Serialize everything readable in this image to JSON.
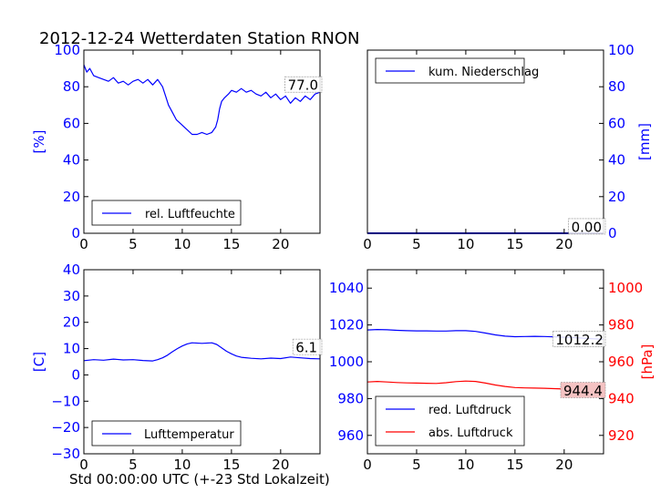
{
  "figure": {
    "title": "2012-12-24 Wetterdaten Station RNON",
    "xlabel": "Std 00:00:00 UTC (+-23 Std Lokalzeit)"
  },
  "colors": {
    "blue": "#0000ff",
    "red": "#ff0000",
    "label_box": "#f4c2c2"
  },
  "chart_data": [
    {
      "type": "line",
      "panel": "top-left",
      "ylabel": "[%]",
      "xlim": [
        0,
        24
      ],
      "ylim": [
        0,
        100
      ],
      "xticks": [
        0,
        5,
        10,
        15,
        20
      ],
      "yticks": [
        0,
        20,
        40,
        60,
        80,
        100
      ],
      "legend": "bottom-left",
      "end_label": "77.0",
      "series": [
        {
          "name": "rel. Luftfeuchte",
          "color": "#0000ff",
          "x": [
            0,
            0.3,
            0.6,
            1,
            1.5,
            2,
            2.5,
            3,
            3.5,
            4,
            4.5,
            5,
            5.5,
            6,
            6.5,
            7,
            7.5,
            8,
            8.3,
            8.6,
            9,
            9.4,
            9.8,
            10.2,
            10.6,
            11,
            11.5,
            12,
            12.5,
            13,
            13.4,
            13.6,
            13.8,
            14,
            14.3,
            14.7,
            15,
            15.5,
            16,
            16.5,
            17,
            17.5,
            18,
            18.5,
            19,
            19.5,
            20,
            20.5,
            21,
            21.5,
            22,
            22.5,
            23,
            23.5,
            24
          ],
          "y": [
            92,
            88,
            90,
            86,
            85,
            84,
            83,
            85,
            82,
            83,
            81,
            83,
            84,
            82,
            84,
            81,
            84,
            80,
            75,
            70,
            66,
            62,
            60,
            58,
            56,
            54,
            54,
            55,
            54,
            55,
            58,
            62,
            68,
            72,
            74,
            76,
            78,
            77,
            79,
            77,
            78,
            76,
            75,
            77,
            74,
            76,
            73,
            75,
            71,
            74,
            72,
            75,
            73,
            76,
            77
          ]
        }
      ]
    },
    {
      "type": "line",
      "panel": "top-right",
      "ylabel": "[mm]",
      "xlim": [
        0,
        24
      ],
      "ylim": [
        0,
        100
      ],
      "xticks": [
        0,
        5,
        10,
        15,
        20
      ],
      "yticks": [
        0,
        20,
        40,
        60,
        80,
        100
      ],
      "legend": "top-left",
      "end_label": "0.00",
      "series": [
        {
          "name": "kum. Niederschlag",
          "color": "#0000ff",
          "x": [
            0,
            24
          ],
          "y": [
            0,
            0
          ]
        }
      ]
    },
    {
      "type": "line",
      "panel": "bottom-left",
      "ylabel": "[C]",
      "xlim": [
        0,
        24
      ],
      "ylim": [
        -30,
        40
      ],
      "xticks": [
        0,
        5,
        10,
        15,
        20
      ],
      "yticks": [
        -30,
        -20,
        -10,
        0,
        10,
        20,
        30,
        40
      ],
      "legend": "bottom-left",
      "end_label": "6.1",
      "series": [
        {
          "name": "Lufttemperatur",
          "color": "#0000ff",
          "x": [
            0,
            1,
            2,
            3,
            4,
            5,
            6,
            7,
            7.5,
            8,
            8.5,
            9,
            9.5,
            10,
            10.5,
            11,
            12,
            13,
            13.5,
            14,
            14.5,
            15,
            15.5,
            16,
            17,
            18,
            19,
            20,
            21,
            22,
            23,
            24
          ],
          "y": [
            5.4,
            5.8,
            5.6,
            6,
            5.7,
            5.8,
            5.5,
            5.3,
            5.8,
            6.5,
            7.5,
            8.8,
            10,
            11,
            11.8,
            12.2,
            12,
            12.2,
            11.6,
            10.3,
            9,
            8,
            7.2,
            6.7,
            6.3,
            6.1,
            6.4,
            6.2,
            6.8,
            6.5,
            6.2,
            6.1
          ]
        }
      ]
    },
    {
      "type": "line",
      "panel": "bottom-right",
      "xlim": [
        0,
        24
      ],
      "ylim": [
        950,
        1050
      ],
      "ylim_right": [
        910,
        1010
      ],
      "ylabel_right": "[hPa]",
      "xticks": [
        0,
        5,
        10,
        15,
        20
      ],
      "yticks": [
        960,
        980,
        1000,
        1020,
        1040
      ],
      "yticks_right": [
        920,
        940,
        960,
        980,
        1000
      ],
      "legend": "bottom-left",
      "end_labels": [
        "1012.2",
        "944.4"
      ],
      "series": [
        {
          "name": "red. Luftdruck",
          "color": "#0000ff",
          "axis": "left",
          "x": [
            0,
            1,
            2,
            3,
            4,
            5,
            6,
            7,
            8,
            9,
            10,
            11,
            12,
            13,
            14,
            15,
            16,
            17,
            18,
            19,
            20,
            21,
            22,
            23,
            24
          ],
          "y": [
            1017.3,
            1017.5,
            1017.4,
            1017.1,
            1016.9,
            1016.8,
            1016.8,
            1016.7,
            1016.7,
            1016.9,
            1016.9,
            1016.5,
            1015.6,
            1014.6,
            1013.9,
            1013.6,
            1013.7,
            1013.8,
            1013.7,
            1013.5,
            1013.3,
            1013.1,
            1012.8,
            1012.5,
            1012.2
          ]
        },
        {
          "name": "abs. Luftdruck",
          "color": "#ff0000",
          "axis": "right",
          "x": [
            0,
            1,
            2,
            3,
            4,
            5,
            6,
            7,
            8,
            9,
            10,
            11,
            12,
            13,
            14,
            15,
            16,
            17,
            18,
            19,
            20,
            21,
            22,
            23,
            24
          ],
          "y": [
            949,
            949.3,
            949,
            948.7,
            948.5,
            948.4,
            948.3,
            948.2,
            948.6,
            949.2,
            949.5,
            949.3,
            948.4,
            947.4,
            946.6,
            946,
            945.8,
            945.7,
            945.6,
            945.4,
            945.2,
            945,
            944.8,
            944.6,
            944.4
          ]
        }
      ]
    }
  ]
}
